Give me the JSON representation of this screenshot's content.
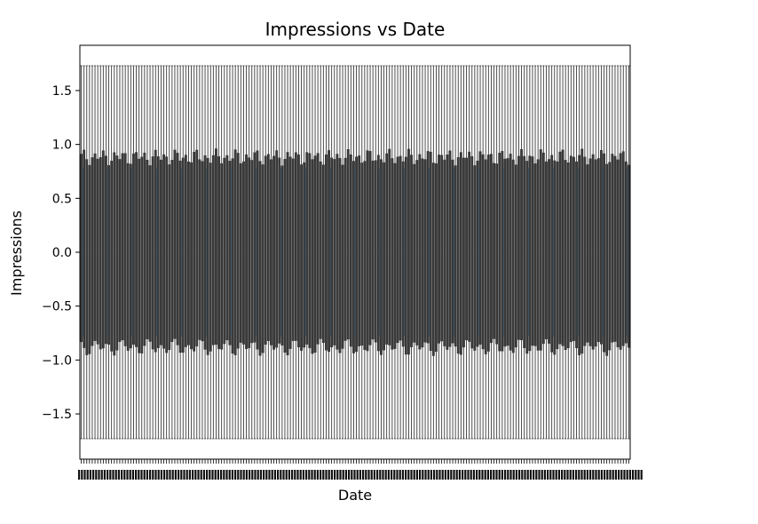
{
  "chart_data": {
    "type": "box",
    "title": "Impressions vs Date",
    "xlabel": "Date",
    "ylabel": "Impressions",
    "ylim": [
      -1.92,
      1.92
    ],
    "yticks": [
      -1.5,
      -1.0,
      -0.5,
      0.0,
      0.5,
      1.0,
      1.5
    ],
    "ytick_labels": [
      "−1.5",
      "−1.0",
      "−0.5",
      "0.0",
      "0.5",
      "1.0",
      "1.5"
    ],
    "category_count": 200,
    "whisker_low": -1.73,
    "whisker_high": 1.73,
    "q1_approx": -0.88,
    "q3_approx": 0.88,
    "median_approx": 0.0,
    "box_color": "#3c3c3c",
    "median_color": "#3a5f7a",
    "whisker_color": "#3c3c3c",
    "grid": false,
    "legend": "none"
  }
}
